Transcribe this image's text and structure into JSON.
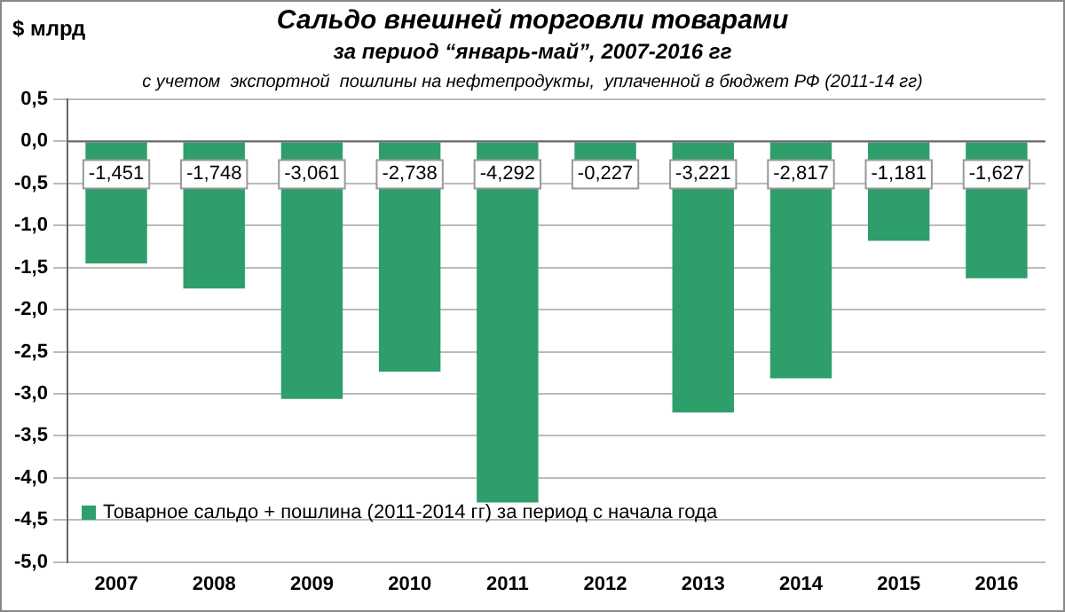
{
  "chart_data": {
    "type": "bar",
    "title": "Сальдо внешней торговли товарами",
    "subtitle": "за период “январь-май”, 2007-2016 гг",
    "ylabel": "$ млрд",
    "annotations": [
      "с учетом  экспортной  пошлины на нефтепродукты,  уплаченной в бюджет РФ (2011-14 гг)"
    ],
    "categories": [
      "2007",
      "2008",
      "2009",
      "2010",
      "2011",
      "2012",
      "2013",
      "2014",
      "2015",
      "2016"
    ],
    "series": [
      {
        "name": "Товарное сальдо + пошлина (2011-2014 гг) за период с начала года",
        "color": "#2e9e6b",
        "values": [
          -1.451,
          -1.748,
          -3.061,
          -2.738,
          -4.292,
          -0.227,
          -3.221,
          -2.817,
          -1.181,
          -1.627
        ],
        "value_labels": [
          "-1,451",
          "-1,748",
          "-3,061",
          "-2,738",
          "-4,292",
          "-0,227",
          "-3,221",
          "-2,817",
          "-1,181",
          "-1,627"
        ]
      }
    ],
    "ylim": [
      -5,
      0.5
    ],
    "yticks": [
      {
        "value": 0.5,
        "label": "0,5"
      },
      {
        "value": 0,
        "label": "0,0"
      },
      {
        "value": -0.5,
        "label": "-0,5"
      },
      {
        "value": -1,
        "label": "-1,0"
      },
      {
        "value": -1.5,
        "label": "-1,5"
      },
      {
        "value": -2,
        "label": "-2,0"
      },
      {
        "value": -2.5,
        "label": "-2,5"
      },
      {
        "value": -3,
        "label": "-3,0"
      },
      {
        "value": -3.5,
        "label": "-3,5"
      },
      {
        "value": -4,
        "label": "-4,0"
      },
      {
        "value": -4.5,
        "label": "-4,5"
      },
      {
        "value": -5,
        "label": "-5,0"
      }
    ],
    "grid": "y",
    "legend": "bottom left"
  }
}
